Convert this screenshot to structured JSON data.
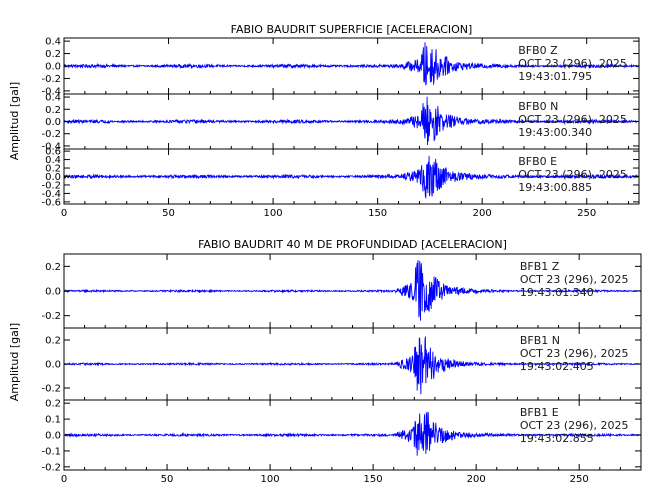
{
  "colors": {
    "trace": "#0000ff",
    "axis": "#000000",
    "background": "#ffffff"
  },
  "chart_data": [
    {
      "type": "line",
      "title": "FABIO BAUDRIT SUPERFICIE [ACELERACION]",
      "ylabel": "Amplitud [gal]",
      "xlim": [
        0,
        275
      ],
      "xticks": [
        0,
        50,
        100,
        150,
        200,
        250
      ],
      "channels": [
        {
          "station": "BFB0",
          "component": "Z",
          "date": "OCT 23 (296), 2025",
          "time": "19:43:01.795",
          "ylim": [
            -0.45,
            0.45
          ],
          "yticks": [
            0.4,
            0.2,
            0.0,
            -0.2,
            -0.4
          ],
          "noise_amplitude": 0.02,
          "event_onset_s": 160,
          "event_peak_s": 174,
          "peak_amplitude": 0.4
        },
        {
          "station": "BFB0",
          "component": "N",
          "date": "OCT 23 (296), 2025",
          "time": "19:43:00.340",
          "ylim": [
            -0.45,
            0.45
          ],
          "yticks": [
            0.4,
            0.2,
            0.0,
            -0.2,
            -0.4
          ],
          "noise_amplitude": 0.02,
          "event_onset_s": 160,
          "event_peak_s": 174,
          "peak_amplitude": 0.4
        },
        {
          "station": "BFB0",
          "component": "E",
          "date": "OCT 23 (296), 2025",
          "time": "19:43:00.885",
          "ylim": [
            -0.65,
            0.65
          ],
          "yticks": [
            0.6,
            0.4,
            0.2,
            0.0,
            -0.2,
            -0.4,
            -0.6
          ],
          "noise_amplitude": 0.03,
          "event_onset_s": 160,
          "event_peak_s": 174,
          "peak_amplitude": 0.6
        }
      ]
    },
    {
      "type": "line",
      "title": "FABIO BAUDRIT 40 M DE PROFUNDIDAD [ACELERACION]",
      "ylabel": "Amplitud [gal]",
      "xlim": [
        0,
        280
      ],
      "xticks": [
        0,
        50,
        100,
        150,
        200,
        250
      ],
      "channels": [
        {
          "station": "BFB1",
          "component": "Z",
          "date": "OCT 23 (296), 2025",
          "time": "19:43:01.340",
          "ylim": [
            -0.3,
            0.3
          ],
          "yticks": [
            0.2,
            0.0,
            -0.2
          ],
          "noise_amplitude": 0.006,
          "event_onset_s": 160,
          "event_peak_s": 173,
          "peak_amplitude": 0.27
        },
        {
          "station": "BFB1",
          "component": "N",
          "date": "OCT 23 (296), 2025",
          "time": "19:43:02.405",
          "ylim": [
            -0.3,
            0.3
          ],
          "yticks": [
            0.2,
            0.0,
            -0.2
          ],
          "noise_amplitude": 0.006,
          "event_onset_s": 160,
          "event_peak_s": 173,
          "peak_amplitude": 0.27
        },
        {
          "station": "BFB1",
          "component": "E",
          "date": "OCT 23 (296), 2025",
          "time": "19:43:02.855",
          "ylim": [
            -0.22,
            0.22
          ],
          "yticks": [
            0.2,
            0.1,
            0.0,
            -0.1,
            -0.2
          ],
          "noise_amplitude": 0.006,
          "event_onset_s": 160,
          "event_peak_s": 173,
          "peak_amplitude": 0.2
        }
      ]
    }
  ]
}
